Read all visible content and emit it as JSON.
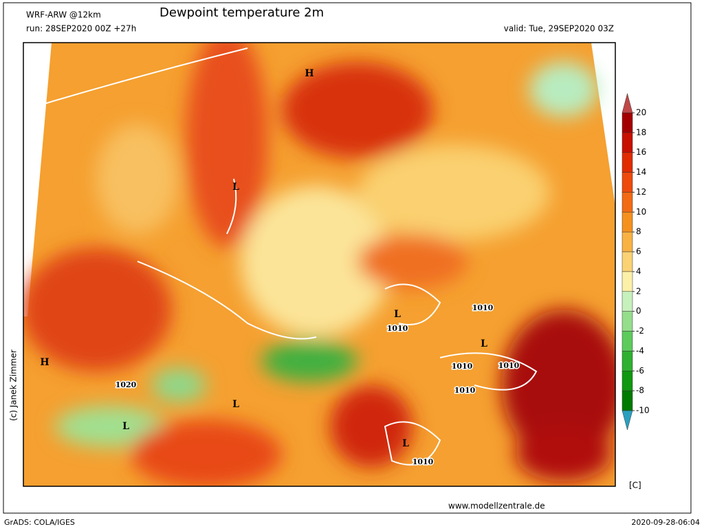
{
  "header": {
    "model": "WRF-ARW @12km",
    "title": "Dewpoint temperature 2m",
    "run": "run: 28SEP2020 00Z +27h",
    "valid": "valid: Tue, 29SEP2020 03Z"
  },
  "colorbar": {
    "unit": "[C]",
    "ticks": [
      20,
      18,
      16,
      14,
      12,
      10,
      8,
      6,
      4,
      2,
      0,
      -2,
      -4,
      -6,
      -8,
      -10
    ],
    "colors": [
      "#a40000",
      "#c81000",
      "#e02c00",
      "#ee4a0c",
      "#f26a14",
      "#f5901e",
      "#f8b244",
      "#fad274",
      "#fcf0a8",
      "#c6f0bc",
      "#94de8c",
      "#5ccb5c",
      "#30b030",
      "#109810",
      "#007a00"
    ],
    "over_color": "#c04848",
    "under_color": "#2aa0c0"
  },
  "map_labels": [
    "H",
    "L",
    "H",
    "1020",
    "L",
    "L",
    "L",
    "1010",
    "1010",
    "L",
    "1010",
    "1010",
    "1010",
    "L",
    "1010"
  ],
  "footer": {
    "copyright": "(c) Janek Zimmer",
    "website": "www.modellzentrale.de",
    "software": "GrADS: COLA/IGES",
    "timestamp": "2020-09-28-06:04"
  }
}
